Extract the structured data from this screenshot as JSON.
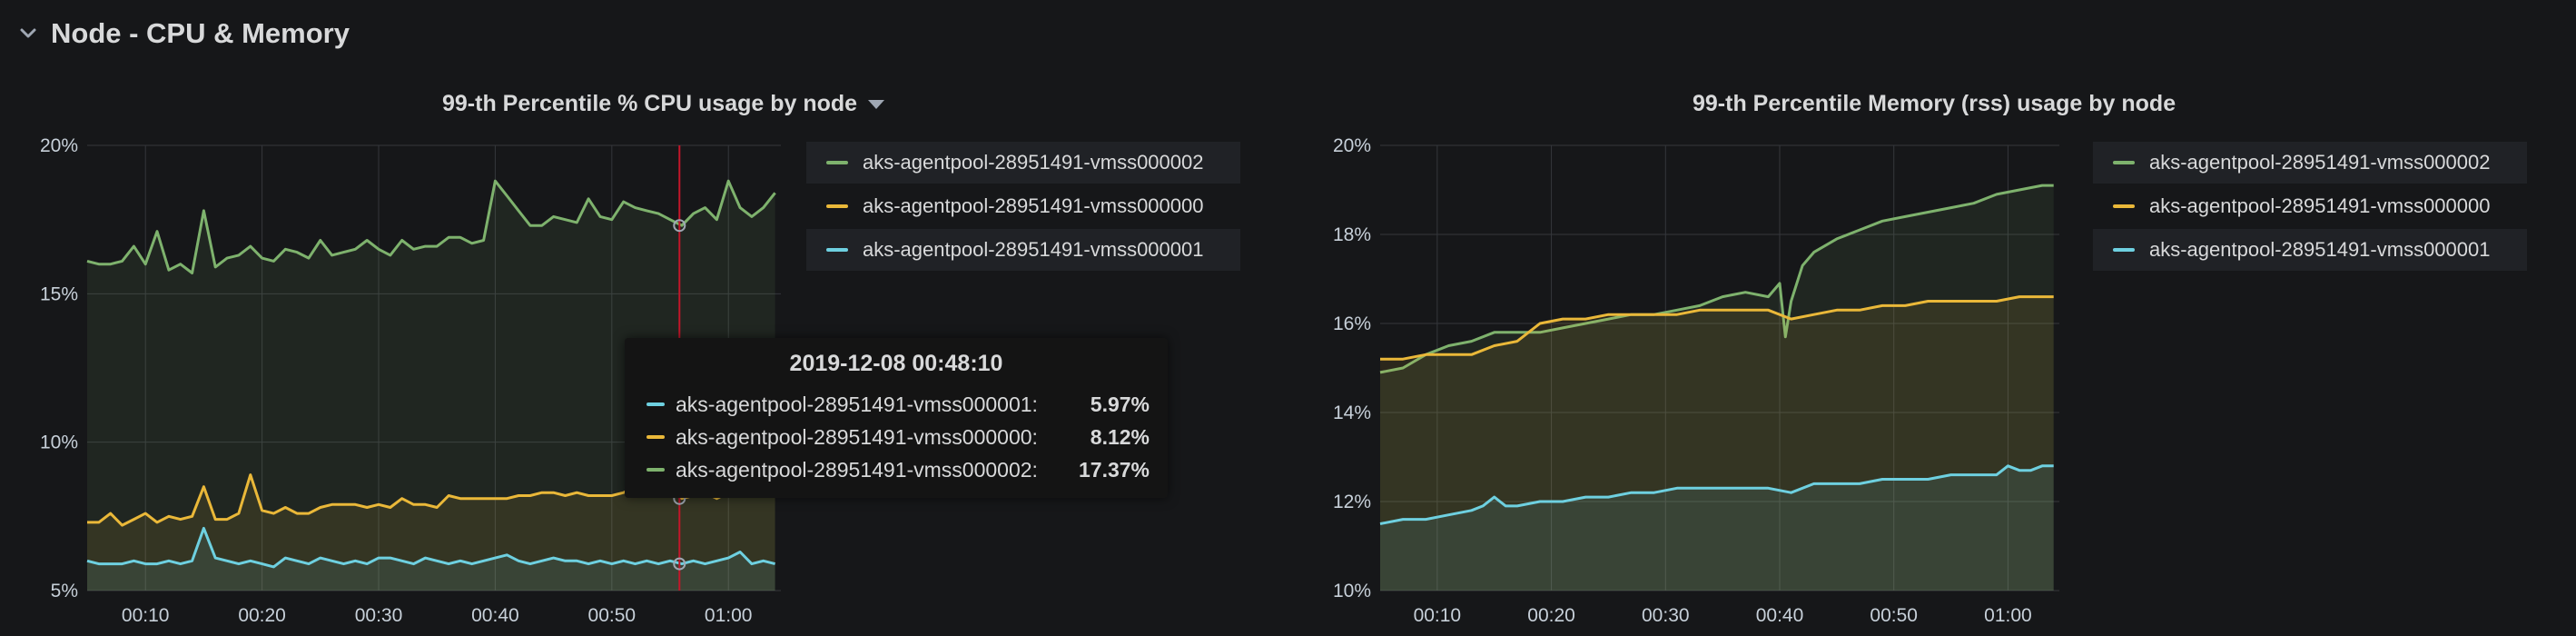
{
  "row": {
    "title": "Node - CPU & Memory"
  },
  "colors": {
    "green": "#7eb26d",
    "yellow": "#eab839",
    "blue": "#6ed0e0",
    "crosshair": "#c4162a"
  },
  "panels": [
    {
      "title": "99-th Percentile % CPU usage by node",
      "legend": [
        {
          "label": "aks-agentpool-28951491-vmss000002",
          "color": "#7eb26d"
        },
        {
          "label": "aks-agentpool-28951491-vmss000000",
          "color": "#eab839"
        },
        {
          "label": "aks-agentpool-28951491-vmss000001",
          "color": "#6ed0e0"
        }
      ],
      "tooltip": {
        "time": "2019-12-08 00:48:10",
        "rows": [
          {
            "label": "aks-agentpool-28951491-vmss000001:",
            "value": "5.97%",
            "color": "#6ed0e0"
          },
          {
            "label": "aks-agentpool-28951491-vmss000000:",
            "value": "8.12%",
            "color": "#eab839"
          },
          {
            "label": "aks-agentpool-28951491-vmss000002:",
            "value": "17.37%",
            "color": "#7eb26d"
          }
        ]
      }
    },
    {
      "title": "99-th Percentile Memory (rss) usage by node",
      "legend": [
        {
          "label": "aks-agentpool-28951491-vmss000002",
          "color": "#7eb26d"
        },
        {
          "label": "aks-agentpool-28951491-vmss000000",
          "color": "#eab839"
        },
        {
          "label": "aks-agentpool-28951491-vmss000001",
          "color": "#6ed0e0"
        }
      ]
    }
  ],
  "chart_data": [
    {
      "type": "area",
      "x_ticks": [
        "00:10",
        "00:20",
        "00:30",
        "00:40",
        "00:50",
        "01:00"
      ],
      "y_ticks": [
        "5%",
        "10%",
        "15%",
        "20%"
      ],
      "ylim": [
        5,
        20
      ],
      "xlim": [
        5,
        64.5
      ],
      "x_tick_values": [
        10,
        20,
        30,
        40,
        50,
        60
      ],
      "y_tick_values": [
        5,
        10,
        15,
        20
      ],
      "grid": true,
      "legend_position": "right",
      "crosshair_x": 55.8,
      "series": [
        {
          "name": "aks-agentpool-28951491-vmss000002",
          "color": "#7eb26d",
          "x": [
            5,
            6,
            7,
            8,
            9,
            10,
            11,
            12,
            13,
            14,
            15,
            16,
            17,
            18,
            19,
            20,
            21,
            22,
            23,
            24,
            25,
            26,
            27,
            28,
            29,
            30,
            31,
            32,
            33,
            34,
            35,
            36,
            37,
            38,
            39,
            40,
            41,
            42,
            43,
            44,
            45,
            46,
            47,
            48,
            49,
            50,
            51,
            52,
            53,
            54,
            55,
            56,
            57,
            58,
            59,
            60,
            61,
            62,
            63,
            64
          ],
          "values": [
            16.1,
            16.0,
            16.0,
            16.1,
            16.6,
            16.0,
            17.1,
            15.8,
            16.0,
            15.7,
            17.8,
            15.9,
            16.2,
            16.3,
            16.6,
            16.2,
            16.1,
            16.5,
            16.4,
            16.2,
            16.8,
            16.3,
            16.4,
            16.5,
            16.8,
            16.5,
            16.3,
            16.8,
            16.5,
            16.6,
            16.6,
            16.9,
            16.9,
            16.7,
            16.8,
            18.8,
            18.3,
            17.8,
            17.3,
            17.3,
            17.6,
            17.5,
            17.4,
            18.2,
            17.6,
            17.5,
            18.1,
            17.9,
            17.8,
            17.7,
            17.5,
            17.3,
            17.7,
            17.9,
            17.5,
            18.8,
            17.9,
            17.6,
            17.9,
            18.4
          ]
        },
        {
          "name": "aks-agentpool-28951491-vmss000000",
          "color": "#eab839",
          "x": [
            5,
            6,
            7,
            8,
            9,
            10,
            11,
            12,
            13,
            14,
            15,
            16,
            17,
            18,
            19,
            20,
            21,
            22,
            23,
            24,
            25,
            26,
            27,
            28,
            29,
            30,
            31,
            32,
            33,
            34,
            35,
            36,
            37,
            38,
            39,
            40,
            41,
            42,
            43,
            44,
            45,
            46,
            47,
            48,
            49,
            50,
            51,
            52,
            53,
            54,
            55,
            56,
            57,
            58,
            59,
            60,
            61,
            62,
            63,
            64
          ],
          "values": [
            7.3,
            7.3,
            7.6,
            7.2,
            7.4,
            7.6,
            7.3,
            7.5,
            7.4,
            7.5,
            8.5,
            7.4,
            7.4,
            7.6,
            8.9,
            7.7,
            7.6,
            7.8,
            7.6,
            7.6,
            7.8,
            7.9,
            7.9,
            7.9,
            7.8,
            7.9,
            7.8,
            8.1,
            7.9,
            7.9,
            7.8,
            8.2,
            8.1,
            8.1,
            8.1,
            8.1,
            8.1,
            8.2,
            8.2,
            8.3,
            8.3,
            8.2,
            8.3,
            8.2,
            8.2,
            8.2,
            8.3,
            8.5,
            8.3,
            8.4,
            8.4,
            8.1,
            8.2,
            8.3,
            8.1,
            8.3,
            8.3,
            8.4,
            8.3,
            8.4
          ]
        },
        {
          "name": "aks-agentpool-28951491-vmss000001",
          "color": "#6ed0e0",
          "x": [
            5,
            6,
            7,
            8,
            9,
            10,
            11,
            12,
            13,
            14,
            15,
            16,
            17,
            18,
            19,
            20,
            21,
            22,
            23,
            24,
            25,
            26,
            27,
            28,
            29,
            30,
            31,
            32,
            33,
            34,
            35,
            36,
            37,
            38,
            39,
            40,
            41,
            42,
            43,
            44,
            45,
            46,
            47,
            48,
            49,
            50,
            51,
            52,
            53,
            54,
            55,
            56,
            57,
            58,
            59,
            60,
            61,
            62,
            63,
            64
          ],
          "values": [
            6.0,
            5.9,
            5.9,
            5.9,
            6.0,
            5.9,
            5.9,
            6.0,
            5.9,
            6.0,
            7.1,
            6.1,
            6.0,
            5.9,
            6.0,
            5.9,
            5.8,
            6.1,
            6.0,
            5.9,
            6.1,
            6.0,
            5.9,
            6.0,
            5.9,
            6.1,
            6.1,
            6.0,
            5.9,
            6.1,
            6.0,
            5.9,
            6.0,
            5.9,
            6.0,
            6.1,
            6.2,
            6.0,
            5.9,
            6.0,
            6.1,
            6.0,
            6.0,
            5.9,
            6.0,
            5.9,
            6.0,
            5.9,
            6.0,
            5.9,
            6.0,
            5.9,
            6.0,
            5.9,
            6.0,
            6.1,
            6.3,
            5.9,
            6.0,
            5.9
          ]
        }
      ]
    },
    {
      "type": "area",
      "x_ticks": [
        "00:10",
        "00:20",
        "00:30",
        "00:40",
        "00:50",
        "01:00"
      ],
      "y_ticks": [
        "10%",
        "12%",
        "14%",
        "16%",
        "18%",
        "20%"
      ],
      "ylim": [
        10,
        20
      ],
      "xlim": [
        5,
        64.5
      ],
      "x_tick_values": [
        10,
        20,
        30,
        40,
        50,
        60
      ],
      "y_tick_values": [
        10,
        12,
        14,
        16,
        18,
        20
      ],
      "grid": true,
      "legend_position": "right",
      "series": [
        {
          "name": "aks-agentpool-28951491-vmss000002",
          "color": "#7eb26d",
          "x": [
            5,
            7,
            9,
            11,
            13,
            15,
            16,
            17,
            19,
            21,
            23,
            25,
            27,
            29,
            31,
            33,
            35,
            37,
            39,
            40,
            40.5,
            41,
            42,
            43,
            45,
            47,
            49,
            51,
            53,
            55,
            57,
            59,
            61,
            63,
            64
          ],
          "values": [
            14.9,
            15.0,
            15.3,
            15.5,
            15.6,
            15.8,
            15.8,
            15.8,
            15.8,
            15.9,
            16.0,
            16.1,
            16.2,
            16.2,
            16.3,
            16.4,
            16.6,
            16.7,
            16.6,
            16.9,
            15.7,
            16.5,
            17.3,
            17.6,
            17.9,
            18.1,
            18.3,
            18.4,
            18.5,
            18.6,
            18.7,
            18.9,
            19.0,
            19.1,
            19.1
          ]
        },
        {
          "name": "aks-agentpool-28951491-vmss000000",
          "color": "#eab839",
          "x": [
            5,
            7,
            9,
            11,
            13,
            15,
            17,
            19,
            21,
            23,
            25,
            27,
            29,
            31,
            33,
            35,
            37,
            39,
            41,
            43,
            45,
            47,
            49,
            51,
            53,
            55,
            57,
            59,
            61,
            63,
            64
          ],
          "values": [
            15.2,
            15.2,
            15.3,
            15.3,
            15.3,
            15.5,
            15.6,
            16.0,
            16.1,
            16.1,
            16.2,
            16.2,
            16.2,
            16.2,
            16.3,
            16.3,
            16.3,
            16.3,
            16.1,
            16.2,
            16.3,
            16.3,
            16.4,
            16.4,
            16.5,
            16.5,
            16.5,
            16.5,
            16.6,
            16.6,
            16.6
          ]
        },
        {
          "name": "aks-agentpool-28951491-vmss000001",
          "color": "#6ed0e0",
          "x": [
            5,
            7,
            9,
            11,
            13,
            14,
            15,
            16,
            17,
            19,
            21,
            23,
            25,
            27,
            29,
            31,
            33,
            35,
            37,
            39,
            41,
            43,
            45,
            47,
            49,
            51,
            53,
            55,
            57,
            59,
            60,
            61,
            62,
            63,
            64
          ],
          "values": [
            11.5,
            11.6,
            11.6,
            11.7,
            11.8,
            11.9,
            12.1,
            11.9,
            11.9,
            12.0,
            12.0,
            12.1,
            12.1,
            12.2,
            12.2,
            12.3,
            12.3,
            12.3,
            12.3,
            12.3,
            12.2,
            12.4,
            12.4,
            12.4,
            12.5,
            12.5,
            12.5,
            12.6,
            12.6,
            12.6,
            12.8,
            12.7,
            12.7,
            12.8,
            12.8
          ]
        }
      ]
    }
  ]
}
